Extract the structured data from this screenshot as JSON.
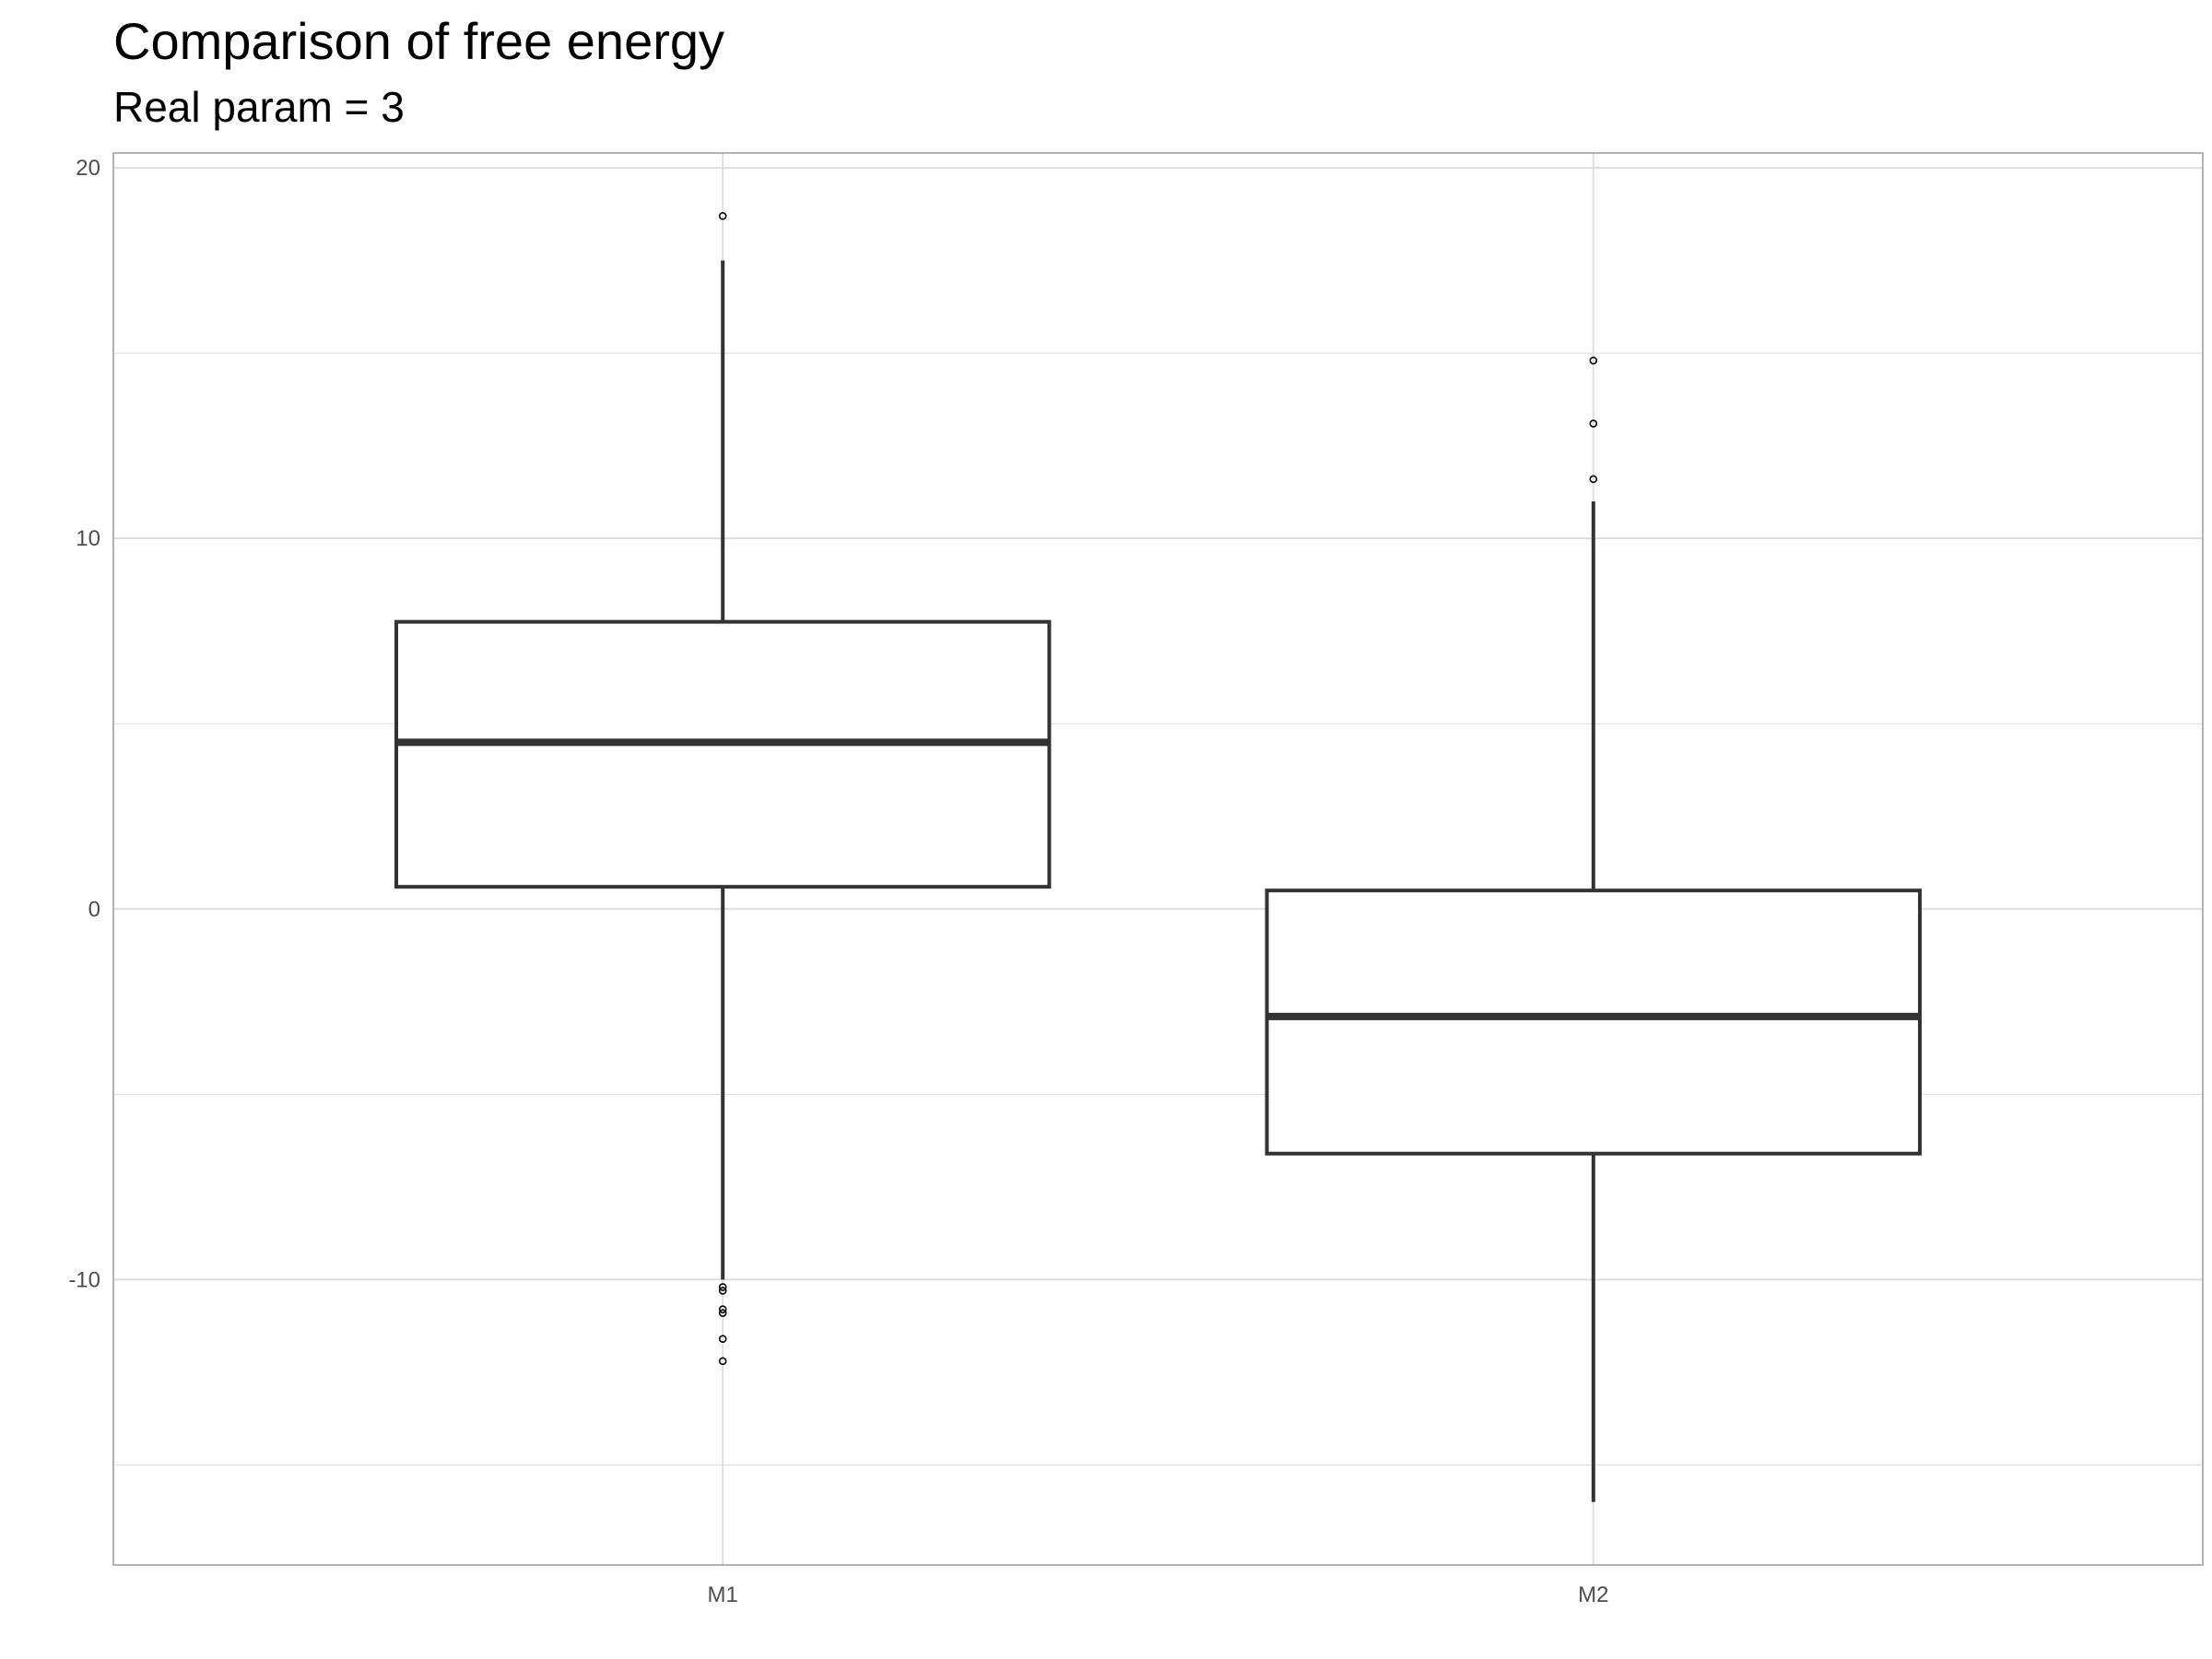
{
  "chart_data": {
    "type": "boxplot",
    "title": "Comparison of free energy",
    "subtitle": "Real param = 3",
    "xlabel": "",
    "ylabel": "",
    "categories": [
      "M1",
      "M2"
    ],
    "ylim": [
      -17.7,
      20.4
    ],
    "yticks": [
      -10,
      0,
      10,
      20
    ],
    "grid": true,
    "legend": "none",
    "colors": {
      "box_line": "#333333",
      "box_fill": "#ffffff",
      "grid": "#dedede",
      "panel_border": "#b3b3b3"
    },
    "boxes": [
      {
        "category": "M1",
        "q1": 0.6,
        "median": 4.5,
        "q3": 7.75,
        "whisker_low": -10.0,
        "whisker_high": 17.5,
        "outliers": [
          18.7,
          -10.2,
          -10.3,
          -10.8,
          -10.9,
          -11.6,
          -12.2
        ]
      },
      {
        "category": "M2",
        "q1": -6.6,
        "median": -2.9,
        "q3": 0.5,
        "whisker_low": -16.0,
        "whisker_high": 11.0,
        "outliers": [
          14.8,
          13.1,
          11.6
        ]
      }
    ]
  }
}
